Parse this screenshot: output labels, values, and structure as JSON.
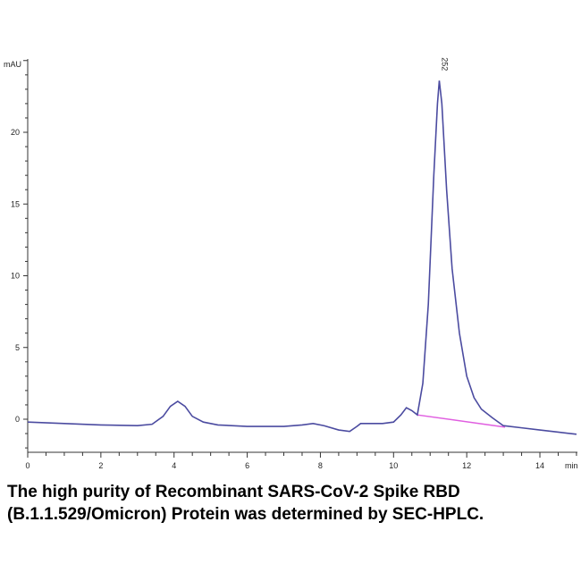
{
  "chart_data": {
    "type": "line",
    "ylabel": "mAU",
    "xlabel": "min",
    "xlim": [
      0,
      15
    ],
    "ylim": [
      -2.3,
      25
    ],
    "xticks": [
      0,
      2,
      4,
      6,
      8,
      10,
      12,
      14
    ],
    "yticks": [
      0,
      5,
      10,
      15,
      20
    ],
    "grid": false,
    "series": [
      {
        "color": "#4b4ba0",
        "x": [
          0,
          1,
          2,
          3,
          3.4,
          3.7,
          3.9,
          4.1,
          4.3,
          4.5,
          4.8,
          5.2,
          6,
          7,
          7.5,
          7.8,
          8.1,
          8.5,
          8.8,
          9.0,
          9.1,
          9.3,
          9.7,
          10.0,
          10.2,
          10.35,
          10.5,
          10.65,
          10.8,
          10.95,
          11.1,
          11.2,
          11.25,
          11.32,
          11.45,
          11.6,
          11.8,
          12.0,
          12.2,
          12.4,
          12.7,
          13.0,
          13.5,
          14,
          14.5,
          15
        ],
        "y": [
          -0.2,
          -0.3,
          -0.4,
          -0.45,
          -0.35,
          0.2,
          0.9,
          1.25,
          0.9,
          0.2,
          -0.2,
          -0.4,
          -0.5,
          -0.5,
          -0.4,
          -0.3,
          -0.45,
          -0.75,
          -0.85,
          -0.5,
          -0.3,
          -0.3,
          -0.3,
          -0.2,
          0.3,
          0.8,
          0.6,
          0.3,
          2.5,
          8,
          17,
          22,
          23.6,
          22,
          16,
          10.5,
          6,
          3,
          1.5,
          0.7,
          0.1,
          -0.45,
          -0.6,
          -0.75,
          -0.9,
          -1.05
        ]
      }
    ],
    "baseline": {
      "color": "#e05ee0",
      "x": [
        10.65,
        13.05
      ],
      "y": [
        0.3,
        -0.55
      ]
    },
    "annotations": [
      {
        "text": "252",
        "x": 11.25,
        "y": 23.6
      }
    ]
  },
  "caption": "The high purity of Recombinant SARS-CoV-2 Spike RBD (B.1.1.529/Omicron) Protein was determined by SEC-HPLC."
}
